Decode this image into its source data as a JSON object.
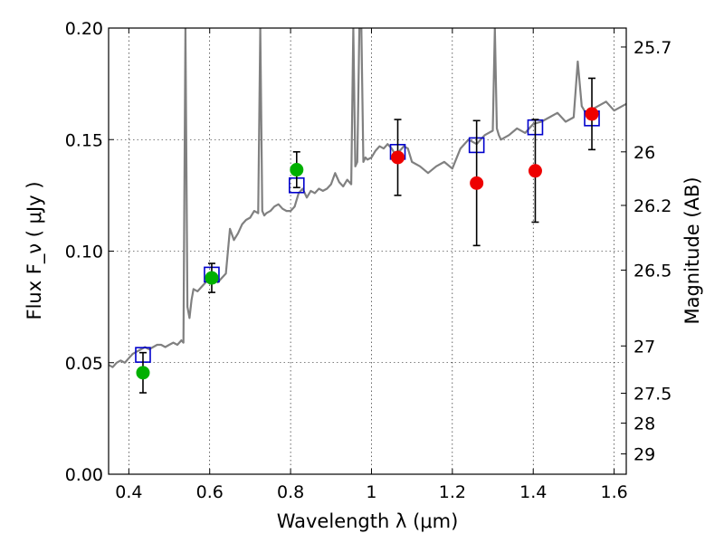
{
  "chart_data": {
    "type": "scatter",
    "xlabel": "Wavelength  λ (μm)",
    "ylabel": "Flux  F_ν  ( μJy )",
    "y2label": "Magnitude (AB)",
    "xlim": [
      0.35,
      1.63
    ],
    "ylim": [
      0.0,
      0.2
    ],
    "grid": true,
    "xticks": [
      0.4,
      0.6,
      0.8,
      1.0,
      1.2,
      1.4,
      1.6
    ],
    "xtick_labels": [
      "0.4",
      "0.6",
      "0.8",
      "1",
      "1.2",
      "1.4",
      "1.6"
    ],
    "yticks": [
      0.0,
      0.05,
      0.1,
      0.15,
      0.2
    ],
    "ytick_labels": [
      "0.00",
      "0.05",
      "0.10",
      "0.15",
      "0.20"
    ],
    "y2ticks": [
      {
        "label": "25.7",
        "flux": 0.1915
      },
      {
        "label": "26",
        "flux": 0.1445
      },
      {
        "label": "26.2",
        "flux": 0.1205
      },
      {
        "label": "26.5",
        "flux": 0.0915
      },
      {
        "label": "27",
        "flux": 0.0575
      },
      {
        "label": "27.5",
        "flux": 0.0363
      },
      {
        "label": "28",
        "flux": 0.0229
      },
      {
        "label": "29",
        "flux": 0.0091
      }
    ],
    "colors": {
      "model": "#808080",
      "template": "#0000cc",
      "optical": "#00b000",
      "nir": "#ee0000",
      "errorbar": "#000000"
    },
    "series": [
      {
        "kind": "line",
        "color": "#808080",
        "x": [
          0.35,
          0.36,
          0.37,
          0.38,
          0.39,
          0.4,
          0.41,
          0.42,
          0.43,
          0.44,
          0.45,
          0.46,
          0.47,
          0.48,
          0.49,
          0.5,
          0.51,
          0.52,
          0.53,
          0.535,
          0.54,
          0.545,
          0.55,
          0.555,
          0.56,
          0.57,
          0.58,
          0.59,
          0.6,
          0.61,
          0.62,
          0.63,
          0.64,
          0.65,
          0.66,
          0.67,
          0.68,
          0.69,
          0.7,
          0.71,
          0.72,
          0.725,
          0.73,
          0.735,
          0.74,
          0.75,
          0.76,
          0.77,
          0.78,
          0.79,
          0.8,
          0.81,
          0.82,
          0.83,
          0.84,
          0.85,
          0.86,
          0.87,
          0.88,
          0.89,
          0.9,
          0.91,
          0.92,
          0.93,
          0.94,
          0.95,
          0.955,
          0.96,
          0.965,
          0.97,
          0.975,
          0.98,
          0.985,
          0.99,
          1.0,
          1.01,
          1.02,
          1.03,
          1.04,
          1.05,
          1.06,
          1.07,
          1.08,
          1.09,
          1.1,
          1.12,
          1.14,
          1.16,
          1.18,
          1.2,
          1.22,
          1.24,
          1.26,
          1.28,
          1.3,
          1.305,
          1.31,
          1.315,
          1.32,
          1.34,
          1.36,
          1.38,
          1.4,
          1.42,
          1.44,
          1.46,
          1.48,
          1.5,
          1.51,
          1.52,
          1.53,
          1.54,
          1.56,
          1.58,
          1.6,
          1.63
        ],
        "y": [
          0.049,
          0.048,
          0.05,
          0.051,
          0.05,
          0.052,
          0.054,
          0.055,
          0.056,
          0.057,
          0.056,
          0.057,
          0.058,
          0.058,
          0.057,
          0.058,
          0.059,
          0.058,
          0.06,
          0.059,
          0.2,
          0.075,
          0.07,
          0.078,
          0.083,
          0.082,
          0.084,
          0.086,
          0.089,
          0.088,
          0.086,
          0.088,
          0.09,
          0.11,
          0.105,
          0.108,
          0.112,
          0.114,
          0.115,
          0.118,
          0.117,
          0.2,
          0.118,
          0.116,
          0.117,
          0.118,
          0.12,
          0.121,
          0.119,
          0.118,
          0.118,
          0.12,
          0.126,
          0.128,
          0.124,
          0.127,
          0.126,
          0.128,
          0.127,
          0.128,
          0.13,
          0.135,
          0.131,
          0.129,
          0.132,
          0.13,
          0.2,
          0.138,
          0.14,
          0.2,
          0.2,
          0.14,
          0.142,
          0.141,
          0.142,
          0.145,
          0.147,
          0.146,
          0.148,
          0.146,
          0.143,
          0.145,
          0.147,
          0.146,
          0.14,
          0.138,
          0.135,
          0.138,
          0.14,
          0.137,
          0.146,
          0.15,
          0.148,
          0.152,
          0.154,
          0.2,
          0.155,
          0.152,
          0.15,
          0.152,
          0.155,
          0.153,
          0.157,
          0.158,
          0.16,
          0.162,
          0.158,
          0.16,
          0.185,
          0.165,
          0.162,
          0.163,
          0.165,
          0.167,
          0.163,
          0.166
        ]
      },
      {
        "kind": "open-square",
        "color": "#0000cc",
        "x": [
          0.435,
          0.605,
          0.815,
          1.065,
          1.26,
          1.405,
          1.545
        ],
        "y": [
          0.0535,
          0.0895,
          0.1295,
          0.1445,
          0.1475,
          0.1555,
          0.1595
        ]
      },
      {
        "kind": "filled-circle",
        "color": "#00b000",
        "x": [
          0.435,
          0.605,
          0.815
        ],
        "y": [
          0.0455,
          0.088,
          0.1365
        ],
        "yerr": [
          0.009,
          0.0065,
          0.008
        ]
      },
      {
        "kind": "filled-circle",
        "color": "#ee0000",
        "x": [
          1.065,
          1.26,
          1.405,
          1.545
        ],
        "y": [
          0.142,
          0.1305,
          0.136,
          0.1615
        ],
        "yerr": [
          0.017,
          0.028,
          0.023,
          0.016
        ]
      }
    ]
  }
}
